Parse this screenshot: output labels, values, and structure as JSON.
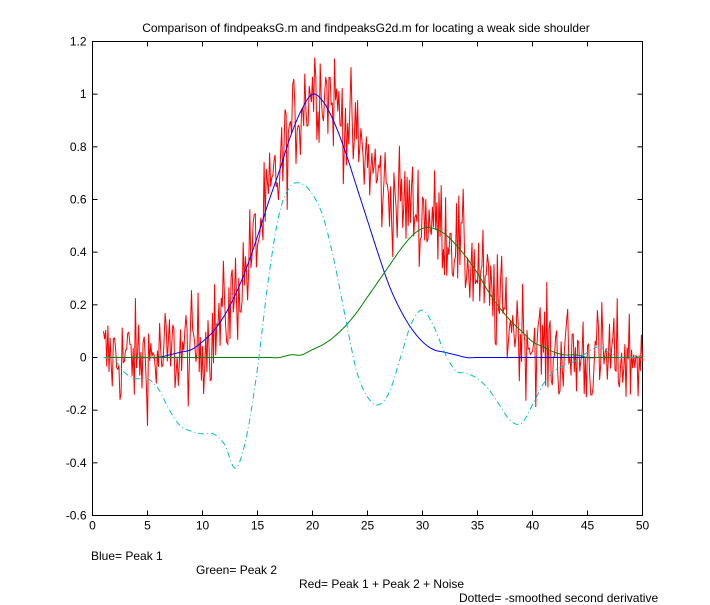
{
  "chart_data": {
    "type": "line",
    "title": "Comparison of findpeaksG.m and findpeaksG2d.m for locating a weak side shoulder",
    "xlabel": "",
    "ylabel": "",
    "xlim": [
      0,
      50
    ],
    "ylim": [
      -0.6,
      1.2
    ],
    "xticks": [
      0,
      5,
      10,
      15,
      20,
      25,
      30,
      35,
      40,
      45,
      50
    ],
    "yticks": [
      1.2,
      1,
      0.8,
      0.6,
      0.4,
      0.2,
      0,
      -0.2,
      -0.4,
      -0.6
    ],
    "ytick_labels": [
      "1.2",
      "1",
      "0.8",
      "0.6",
      "0.4",
      "0.2",
      "0",
      "-0.2",
      "-0.4",
      "-0.6"
    ],
    "grid": false,
    "legend": "none",
    "caption": {
      "blue": "Blue= Peak 1",
      "green": "Green= Peak 2",
      "red": "Red= Peak 1 + Peak 2 + Noise",
      "dotted": "Dotted= -smoothed second derivative"
    },
    "x": [
      1,
      2,
      3,
      4,
      5,
      6,
      7,
      8,
      9,
      10,
      11,
      12,
      13,
      14,
      15,
      16,
      17,
      18,
      19,
      20,
      21,
      22,
      23,
      24,
      25,
      26,
      27,
      28,
      29,
      30,
      31,
      32,
      33,
      34,
      35,
      36,
      37,
      38,
      39,
      40,
      41,
      42,
      43,
      44,
      45,
      46,
      47,
      48,
      49,
      50
    ],
    "series": [
      {
        "name": "Peak 1",
        "color": "#0000ff",
        "style": "solid",
        "values": [
          0.0,
          0.0,
          0.0,
          0.0,
          0.0,
          0.0,
          0.01,
          0.02,
          0.03,
          0.06,
          0.1,
          0.16,
          0.24,
          0.34,
          0.46,
          0.59,
          0.71,
          0.84,
          0.94,
          1.0,
          0.97,
          0.89,
          0.78,
          0.65,
          0.52,
          0.39,
          0.27,
          0.18,
          0.11,
          0.06,
          0.03,
          0.02,
          0.01,
          0.0,
          0.0,
          0.0,
          0.0,
          0.0,
          0.0,
          0.0,
          0.0,
          0.0,
          0.0,
          0.0,
          0.0,
          0.0,
          0.0,
          0.0,
          0.0,
          0.0
        ]
      },
      {
        "name": "Peak 2",
        "color": "#008000",
        "style": "solid",
        "values": [
          0.0,
          0.0,
          0.0,
          0.0,
          0.0,
          0.0,
          0.0,
          0.0,
          0.0,
          0.0,
          0.0,
          0.0,
          0.0,
          0.0,
          0.0,
          0.0,
          0.0,
          0.01,
          0.01,
          0.03,
          0.05,
          0.08,
          0.12,
          0.17,
          0.23,
          0.29,
          0.35,
          0.41,
          0.46,
          0.49,
          0.49,
          0.47,
          0.43,
          0.38,
          0.32,
          0.25,
          0.19,
          0.14,
          0.1,
          0.06,
          0.04,
          0.02,
          0.01,
          0.01,
          0.0,
          0.0,
          0.0,
          0.0,
          0.0,
          0.0
        ]
      },
      {
        "name": "Peak 1 + Peak 2 + Noise",
        "color": "#ff0000",
        "style": "solid",
        "noise_amplitude": 0.1,
        "values": [
          0.0,
          0.0,
          0.0,
          0.0,
          0.0,
          0.0,
          0.01,
          0.02,
          0.03,
          0.06,
          0.1,
          0.16,
          0.24,
          0.34,
          0.46,
          0.59,
          0.71,
          0.85,
          0.95,
          1.03,
          1.02,
          0.97,
          0.9,
          0.82,
          0.75,
          0.68,
          0.62,
          0.59,
          0.57,
          0.55,
          0.52,
          0.49,
          0.44,
          0.38,
          0.32,
          0.25,
          0.19,
          0.14,
          0.1,
          0.06,
          0.04,
          0.02,
          0.01,
          0.01,
          0.0,
          0.0,
          0.0,
          0.0,
          0.0,
          0.0
        ]
      },
      {
        "name": "-smoothed second derivative",
        "color": "#00bfbf",
        "style": "dashdot",
        "values": [
          0.0,
          -0.01,
          -0.06,
          -0.08,
          -0.08,
          -0.12,
          -0.2,
          -0.26,
          -0.28,
          -0.29,
          -0.29,
          -0.33,
          -0.42,
          -0.3,
          -0.04,
          0.3,
          0.55,
          0.65,
          0.66,
          0.62,
          0.53,
          0.36,
          0.15,
          -0.05,
          -0.15,
          -0.18,
          -0.13,
          0.0,
          0.13,
          0.18,
          0.12,
          0.02,
          -0.05,
          -0.06,
          -0.08,
          -0.12,
          -0.18,
          -0.24,
          -0.25,
          -0.18,
          -0.1,
          -0.05,
          -0.03,
          -0.01,
          0.02,
          0.04,
          0.02,
          0.0,
          0.0,
          0.0
        ]
      }
    ]
  }
}
